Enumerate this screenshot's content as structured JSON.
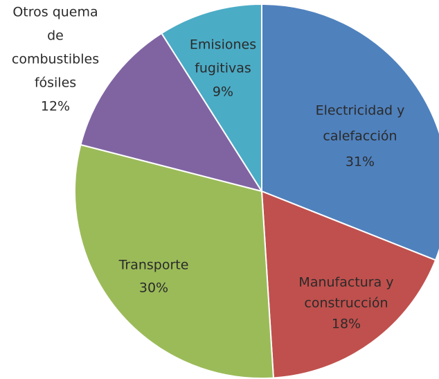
{
  "chart_data": {
    "type": "pie",
    "categories": [
      [
        "Electricidad y",
        "calefacción"
      ],
      [
        "Manufactura y",
        "construcción"
      ],
      [
        "Transporte"
      ],
      [
        "Otros quema",
        "de",
        "combustibles",
        "fósiles"
      ],
      [
        "Emisiones",
        "fugitivas"
      ]
    ],
    "values": [
      31,
      18,
      30,
      12,
      9
    ],
    "value_labels": [
      "31%",
      "18%",
      "30%",
      "12%",
      "9%"
    ],
    "colors": [
      "#4f81bd",
      "#c0504d",
      "#9bbb59",
      "#8064a2",
      "#4bacc6"
    ]
  }
}
